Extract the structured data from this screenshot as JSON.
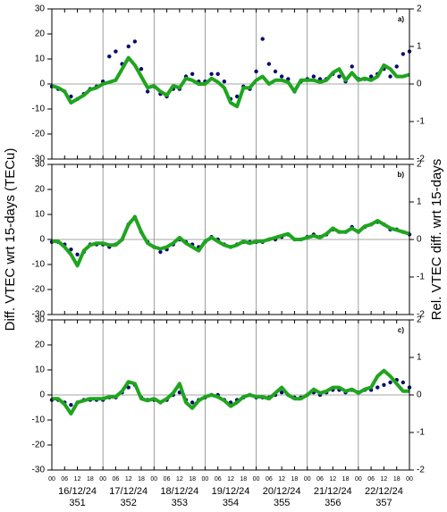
{
  "ylabel": "Diff. VTEC wrt 15-days (TECu)",
  "y2label": "Rel. VTEC diff. wrt 15-days",
  "x_axis": {
    "xlim": [
      0,
      168
    ],
    "xticks": [
      {
        "value": 0,
        "label": "00"
      },
      {
        "value": 6,
        "label": "06"
      },
      12,
      18,
      {
        "value": 24,
        "label": "00"
      },
      {
        "value": 30,
        "label": "06"
      },
      {
        "value": 36,
        "label": "12"
      },
      {
        "value": 42,
        "label": "18"
      },
      {
        "value": 48,
        "label": "00"
      },
      {
        "value": 54,
        "label": "06"
      },
      {
        "value": 60,
        "label": "12"
      },
      {
        "value": 66,
        "label": "18"
      },
      {
        "value": 72,
        "label": "00"
      },
      {
        "value": 78,
        "label": "06"
      },
      {
        "value": 84,
        "label": "12"
      },
      {
        "value": 90,
        "label": "18"
      },
      {
        "value": 96,
        "label": "00"
      },
      {
        "value": 102,
        "label": "06"
      },
      {
        "value": 108,
        "label": "12"
      },
      {
        "value": 114,
        "label": "18"
      },
      {
        "value": 120,
        "label": "00"
      },
      {
        "value": 126,
        "label": "06"
      },
      {
        "value": 132,
        "label": "12"
      },
      {
        "value": 138,
        "label": "18"
      },
      {
        "value": 144,
        "label": "00"
      },
      {
        "value": 150,
        "label": "06"
      },
      {
        "value": 156,
        "label": "12"
      },
      {
        "value": 162,
        "label": "18"
      },
      {
        "value": 168,
        "label": "00"
      }
    ],
    "day_labels": [
      "16/12/24",
      "17/12/24",
      "18/12/24",
      "19/12/24",
      "20/12/24",
      "21/12/24",
      "22/12/24"
    ],
    "doy_labels": [
      "351",
      "352",
      "353",
      "354",
      "355",
      "356",
      "357"
    ]
  },
  "chart_data": [
    {
      "type": "line",
      "panel_label": "a)",
      "ylim": [
        -30,
        30
      ],
      "yticks": [
        -30,
        -20,
        -10,
        0,
        10,
        20,
        30
      ],
      "y2lim": [
        -2,
        2
      ],
      "y2ticks": [
        -2,
        -1,
        0,
        1,
        2
      ],
      "x": [
        0,
        3,
        6,
        9,
        12,
        15,
        18,
        21,
        24,
        27,
        30,
        33,
        36,
        39,
        42,
        45,
        48,
        51,
        54,
        57,
        60,
        63,
        66,
        69,
        72,
        75,
        78,
        81,
        84,
        87,
        90,
        93,
        96,
        99,
        102,
        105,
        108,
        111,
        114,
        117,
        120,
        123,
        126,
        129,
        132,
        135,
        138,
        141,
        144,
        147,
        150,
        153,
        156,
        159,
        162,
        165,
        168
      ],
      "series": [
        {
          "color": "#0a0a6e",
          "style": "dots",
          "values": [
            -1,
            -2,
            -3,
            -5,
            -6,
            -4,
            -2,
            -1,
            1,
            11,
            13,
            8,
            15,
            17,
            6,
            -3,
            -1,
            -4,
            -5,
            -2,
            -2,
            3,
            4,
            1,
            1,
            4,
            4,
            1,
            -6,
            -5,
            -1,
            -2,
            5,
            18,
            8,
            5,
            3,
            2,
            -3,
            1,
            2,
            3,
            2,
            2,
            4,
            3,
            1,
            7,
            2,
            2,
            3,
            4,
            6,
            3,
            7,
            12,
            13
          ]
        },
        {
          "color": "#1fa51f",
          "style": "line",
          "axis": "y2",
          "values": [
            -0.05,
            -0.1,
            -0.2,
            -0.5,
            -0.4,
            -0.3,
            -0.15,
            -0.1,
            0,
            0.05,
            0.1,
            0.4,
            0.7,
            0.5,
            0.2,
            -0.1,
            -0.05,
            -0.2,
            -0.3,
            -0.05,
            -0.1,
            0.15,
            0.1,
            0,
            0,
            0.15,
            0.05,
            -0.1,
            -0.5,
            -0.6,
            -0.1,
            -0.1,
            0.1,
            0.2,
            0,
            0.1,
            0.1,
            0.05,
            -0.2,
            0.1,
            0.1,
            0.1,
            0.05,
            0.1,
            0.3,
            0.4,
            0.1,
            0.3,
            0.1,
            0.15,
            0.1,
            0.2,
            0.5,
            0.4,
            0.2,
            0.2,
            0.25
          ]
        }
      ]
    },
    {
      "type": "line",
      "panel_label": "b)",
      "ylim": [
        -30,
        30
      ],
      "yticks": [
        -30,
        -20,
        -10,
        0,
        10,
        20,
        30
      ],
      "y2lim": [
        -2,
        2
      ],
      "y2ticks": [
        -2,
        -1,
        0,
        1,
        2
      ],
      "x": [
        0,
        3,
        6,
        9,
        12,
        15,
        18,
        21,
        24,
        27,
        30,
        33,
        36,
        39,
        42,
        45,
        48,
        51,
        54,
        57,
        60,
        63,
        66,
        69,
        72,
        75,
        78,
        81,
        84,
        87,
        90,
        93,
        96,
        99,
        102,
        105,
        108,
        111,
        114,
        117,
        120,
        123,
        126,
        129,
        132,
        135,
        138,
        141,
        144,
        147,
        150,
        153,
        156,
        159,
        162,
        165,
        168
      ],
      "series": [
        {
          "color": "#0a0a6e",
          "style": "dots",
          "values": [
            -1,
            -1,
            -2,
            -4,
            -6,
            -5,
            -2,
            -2,
            -2,
            -3,
            -2,
            0,
            6,
            9,
            3,
            -1,
            -3,
            -5,
            -4,
            -2,
            0,
            -1,
            -2,
            -3,
            -1,
            1,
            0,
            -2,
            -3,
            -2,
            -1,
            -1,
            -1,
            -1,
            0,
            0,
            1,
            2,
            0,
            0,
            1,
            2,
            1,
            2,
            4,
            3,
            3,
            5,
            3,
            5,
            6,
            7,
            6,
            4,
            4,
            3,
            2
          ]
        },
        {
          "color": "#1fa51f",
          "style": "line",
          "axis": "y2",
          "values": [
            -0.05,
            -0.05,
            -0.2,
            -0.4,
            -0.7,
            -0.3,
            -0.15,
            -0.1,
            -0.1,
            -0.15,
            -0.15,
            0,
            0.4,
            0.6,
            0.2,
            -0.1,
            -0.2,
            -0.25,
            -0.2,
            -0.1,
            0.05,
            -0.1,
            -0.2,
            -0.3,
            -0.05,
            0.05,
            -0.05,
            -0.15,
            -0.2,
            -0.15,
            -0.05,
            -0.1,
            -0.05,
            -0.05,
            0,
            0.05,
            0.1,
            0.15,
            0,
            0,
            0.05,
            0.1,
            0.05,
            0.15,
            0.3,
            0.2,
            0.2,
            0.3,
            0.2,
            0.35,
            0.4,
            0.5,
            0.4,
            0.3,
            0.25,
            0.2,
            0.15
          ]
        }
      ]
    },
    {
      "type": "line",
      "panel_label": "c)",
      "ylim": [
        -30,
        30
      ],
      "yticks": [
        -30,
        -20,
        -10,
        0,
        10,
        20,
        30
      ],
      "y2lim": [
        -2,
        2
      ],
      "y2ticks": [
        -2,
        -1,
        0,
        1,
        2
      ],
      "x": [
        0,
        3,
        6,
        9,
        12,
        15,
        18,
        21,
        24,
        27,
        30,
        33,
        36,
        39,
        42,
        45,
        48,
        51,
        54,
        57,
        60,
        63,
        66,
        69,
        72,
        75,
        78,
        81,
        84,
        87,
        90,
        93,
        96,
        99,
        102,
        105,
        108,
        111,
        114,
        117,
        120,
        123,
        126,
        129,
        132,
        135,
        138,
        141,
        144,
        147,
        150,
        153,
        156,
        159,
        162,
        165,
        168
      ],
      "series": [
        {
          "color": "#0a0a6e",
          "style": "dots",
          "values": [
            -2,
            -2,
            -3,
            -4,
            -3,
            -2,
            -2,
            -2,
            -2,
            -1,
            -1,
            1,
            3,
            4,
            -1,
            -2,
            -2,
            -3,
            -2,
            0,
            1,
            -2,
            -3,
            -2,
            -1,
            0,
            0,
            -2,
            -3,
            -2,
            -1,
            0,
            -1,
            -1,
            -1,
            0,
            1,
            0,
            -1,
            -1,
            0,
            1,
            0,
            1,
            2,
            2,
            1,
            2,
            1,
            2,
            2,
            3,
            4,
            5,
            6,
            5,
            3
          ]
        },
        {
          "color": "#1fa51f",
          "style": "line",
          "axis": "y2",
          "values": [
            -0.1,
            -0.1,
            -0.25,
            -0.5,
            -0.2,
            -0.15,
            -0.1,
            -0.1,
            -0.1,
            -0.05,
            -0.05,
            0.1,
            0.35,
            0.3,
            -0.1,
            -0.15,
            -0.1,
            -0.2,
            -0.1,
            0.05,
            0.3,
            -0.2,
            -0.35,
            -0.15,
            -0.05,
            0,
            -0.05,
            -0.15,
            -0.3,
            -0.2,
            -0.05,
            0,
            -0.05,
            -0.05,
            -0.1,
            0.05,
            0.2,
            0,
            -0.1,
            -0.1,
            0,
            0.15,
            0.05,
            0.1,
            0.2,
            0.2,
            0.1,
            0.15,
            0.05,
            0.15,
            0.2,
            0.5,
            0.65,
            0.5,
            0.3,
            0.1,
            0.1
          ]
        }
      ]
    }
  ]
}
